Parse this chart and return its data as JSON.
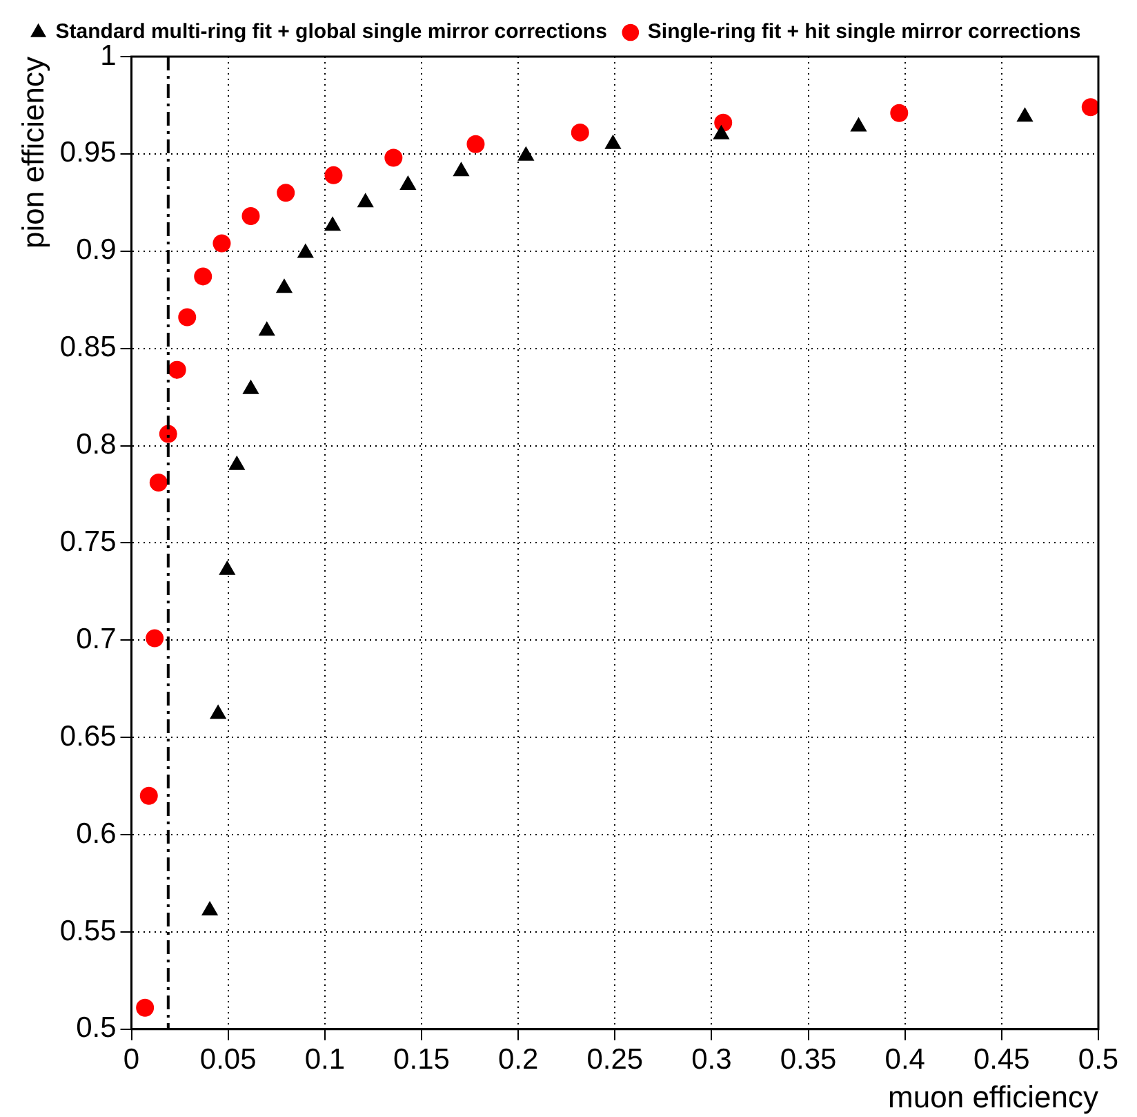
{
  "chart_data": {
    "type": "scatter",
    "xlabel": "muon efficiency",
    "ylabel": "pion efficiency",
    "xlim": [
      0,
      0.5
    ],
    "xticks": [
      0,
      0.05,
      0.1,
      0.15,
      0.2,
      0.25,
      0.3,
      0.35,
      0.4,
      0.45,
      0.5
    ],
    "ylim": [
      0.5,
      1
    ],
    "yticks": [
      0.5,
      0.55,
      0.6,
      0.65,
      0.7,
      0.75,
      0.8,
      0.85,
      0.9,
      0.95,
      1
    ],
    "grid": true,
    "legend": "top",
    "ref_lines": [
      {
        "axis": "x",
        "value": 0.019,
        "color": "#000000",
        "line_style": "dashed"
      }
    ],
    "series": [
      {
        "name": "Standard multi-ring fit + global single mirror corrections",
        "color": "#000000",
        "marker": "triangle",
        "x": [
          0.0405,
          0.0448,
          0.0495,
          0.0545,
          0.0617,
          0.07,
          0.079,
          0.09,
          0.104,
          0.121,
          0.143,
          0.1705,
          0.204,
          0.249,
          0.305,
          0.376,
          0.462
        ],
        "values": [
          0.561,
          0.662,
          0.736,
          0.79,
          0.829,
          0.859,
          0.881,
          0.899,
          0.913,
          0.925,
          0.934,
          0.941,
          0.949,
          0.955,
          0.96,
          0.964,
          0.969
        ]
      },
      {
        "name": "Single-ring fit + hit single mirror corrections",
        "color": "#ff0000",
        "marker": "circle",
        "x": [
          0.007,
          0.009,
          0.012,
          0.014,
          0.019,
          0.0236,
          0.0288,
          0.037,
          0.0467,
          0.0617,
          0.0798,
          0.1045,
          0.1355,
          0.178,
          0.232,
          0.306,
          0.397,
          0.496
        ],
        "values": [
          0.511,
          0.62,
          0.701,
          0.781,
          0.806,
          0.839,
          0.866,
          0.887,
          0.904,
          0.918,
          0.93,
          0.939,
          0.948,
          0.955,
          0.961,
          0.966,
          0.971,
          0.974
        ]
      }
    ]
  }
}
